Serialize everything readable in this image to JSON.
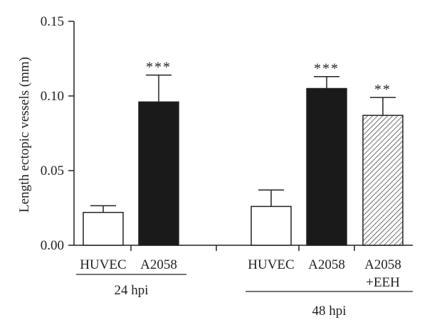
{
  "chart_data": {
    "type": "bar",
    "ylabel": "Length ectopic vessels (mm)",
    "ylim": [
      0,
      0.15
    ],
    "yticks": [
      "0.00",
      "0.05",
      "0.10",
      "0.15"
    ],
    "categories": [
      {
        "label": [
          "HUVEC"
        ],
        "value": 0.022,
        "error": 0.0045,
        "fill": "white",
        "significance": ""
      },
      {
        "label": [
          "A2058"
        ],
        "value": 0.096,
        "error": 0.018,
        "fill": "black",
        "significance": "***"
      },
      {
        "label": [
          "HUVEC"
        ],
        "value": 0.026,
        "error": 0.011,
        "fill": "white",
        "significance": ""
      },
      {
        "label": [
          "A2058"
        ],
        "value": 0.105,
        "error": 0.008,
        "fill": "black",
        "significance": "***"
      },
      {
        "label": [
          "A2058",
          "+EEH"
        ],
        "value": 0.087,
        "error": 0.012,
        "fill": "hatched",
        "significance": "**"
      }
    ],
    "groups": [
      {
        "label": "24 hpi",
        "members": [
          0,
          1
        ]
      },
      {
        "label": "48 hpi",
        "members": [
          2,
          3,
          4
        ]
      }
    ],
    "colors": {
      "black": "#1a1a1a",
      "white": "#ffffff",
      "axis": "#222222"
    }
  }
}
